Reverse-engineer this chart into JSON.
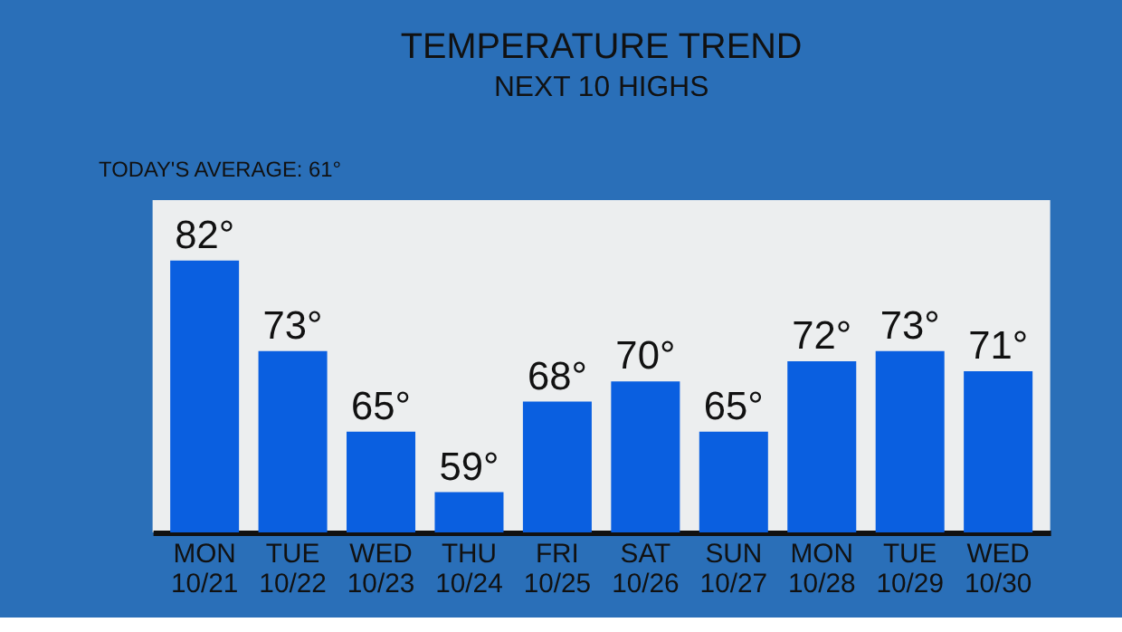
{
  "chart_data": {
    "type": "bar",
    "title": "TEMPERATURE TREND",
    "subtitle": "NEXT 10 HIGHS",
    "annotations": [
      "TODAY'S AVERAGE: 61°"
    ],
    "categories": [
      "MON\n10/21",
      "TUE\n10/22",
      "WED\n10/23",
      "THU\n10/24",
      "FRI\n10/25",
      "SAT\n10/26",
      "SUN\n10/27",
      "MON\n10/28",
      "TUE\n10/29",
      "WED\n10/30"
    ],
    "values": [
      82,
      73,
      65,
      59,
      68,
      70,
      65,
      72,
      73,
      71
    ],
    "value_labels": [
      "82°",
      "73°",
      "65°",
      "59°",
      "68°",
      "70°",
      "65°",
      "72°",
      "73°",
      "71°"
    ],
    "color": "#0a5fe0",
    "ylim": [
      55,
      88
    ],
    "tick_labels": "x",
    "grid": false
  }
}
